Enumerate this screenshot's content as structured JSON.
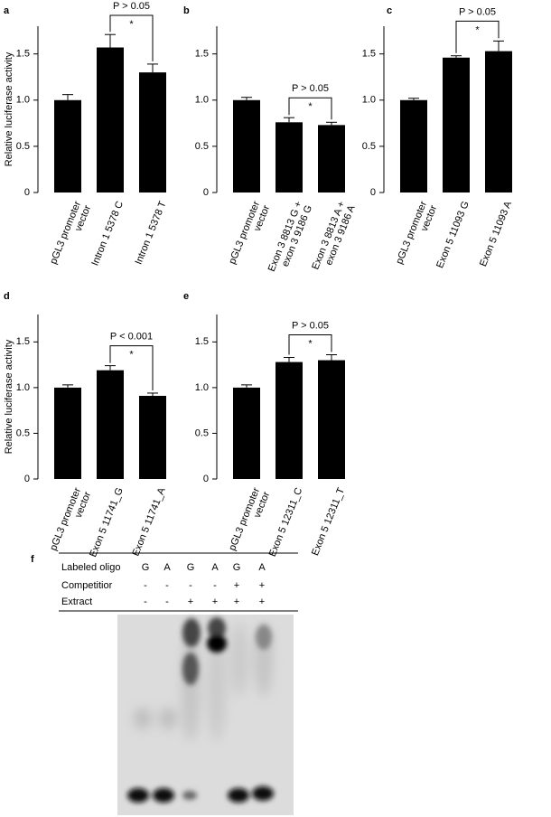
{
  "chart_data": [
    {
      "type": "bar",
      "label": "a",
      "ylabel": "Relative luciferase activity",
      "categories": [
        "pGL3 promoter\nvector",
        "Intron 1 5378 C",
        "Intron 1 5378 T"
      ],
      "values": [
        1.0,
        1.57,
        1.3
      ],
      "errors": [
        0.06,
        0.14,
        0.09
      ],
      "color": "#000000",
      "ylim": [
        0,
        1.8
      ],
      "yticks": [
        0,
        0.5,
        {
          "value": 1,
          "label": "1.0"
        },
        1.5
      ],
      "annotation": "P > 0.05",
      "significance": "*"
    },
    {
      "type": "bar",
      "label": "b",
      "categories": [
        "pGL3 promoter\nvector",
        "Exon 3 8813 G +\nexon 3 9186 G",
        "Exon 3 8813 A +\nexon 3 9186 A"
      ],
      "values": [
        1.0,
        0.76,
        0.73
      ],
      "errors": [
        0.03,
        0.05,
        0.03
      ],
      "color": "#000000",
      "ylim": [
        0,
        1.8
      ],
      "yticks": [
        0,
        0.5,
        {
          "value": 1,
          "label": "1.0"
        },
        1.5
      ],
      "annotation": "P > 0.05",
      "significance": "*"
    },
    {
      "type": "bar",
      "label": "c",
      "categories": [
        "pGL3 promoter\nvector",
        "Exon 5 11093 G",
        "Exon 5 11093 A"
      ],
      "values": [
        1.0,
        1.46,
        1.53
      ],
      "errors": [
        0.02,
        0.02,
        0.11
      ],
      "color": "#000000",
      "ylim": [
        0,
        1.8
      ],
      "yticks": [
        0,
        0.5,
        {
          "value": 1,
          "label": "1.0"
        },
        1.5
      ],
      "annotation": "P > 0.05",
      "significance": "*"
    },
    {
      "type": "bar",
      "label": "d",
      "ylabel": "Relative luciferase activity",
      "categories": [
        "pGL3 promoter\nvector",
        "Exon 5 11741_G",
        "Exon 5 11741_A"
      ],
      "values": [
        1.0,
        1.19,
        0.91
      ],
      "errors": [
        0.03,
        0.05,
        0.03
      ],
      "color": "#000000",
      "ylim": [
        0,
        1.8
      ],
      "yticks": [
        0,
        0.5,
        {
          "value": 1,
          "label": "1.0"
        },
        1.5
      ],
      "annotation": "P < 0.001",
      "significance": "*"
    },
    {
      "type": "bar",
      "label": "e",
      "categories": [
        "pGL3 promoter\nvector",
        "Exon 5 12311_C",
        "Exon 5 12311_T"
      ],
      "values": [
        1.0,
        1.28,
        1.3
      ],
      "errors": [
        0.03,
        0.05,
        0.06
      ],
      "color": "#000000",
      "ylim": [
        0,
        1.8
      ],
      "yticks": [
        0,
        0.5,
        {
          "value": 1,
          "label": "1.0"
        },
        1.5
      ],
      "annotation": "P > 0.05",
      "significance": "*"
    }
  ],
  "gel": {
    "label": "f",
    "rows": [
      {
        "name": "Labeled oligo",
        "cells": [
          "G",
          "A",
          "G",
          "A",
          "G",
          "A"
        ]
      },
      {
        "name": "Competitior",
        "cells": [
          "-",
          "-",
          "-",
          "-",
          "+",
          "+"
        ]
      },
      {
        "name": "Extract",
        "cells": [
          "-",
          "-",
          "+",
          "+",
          "+",
          "+"
        ]
      }
    ]
  }
}
